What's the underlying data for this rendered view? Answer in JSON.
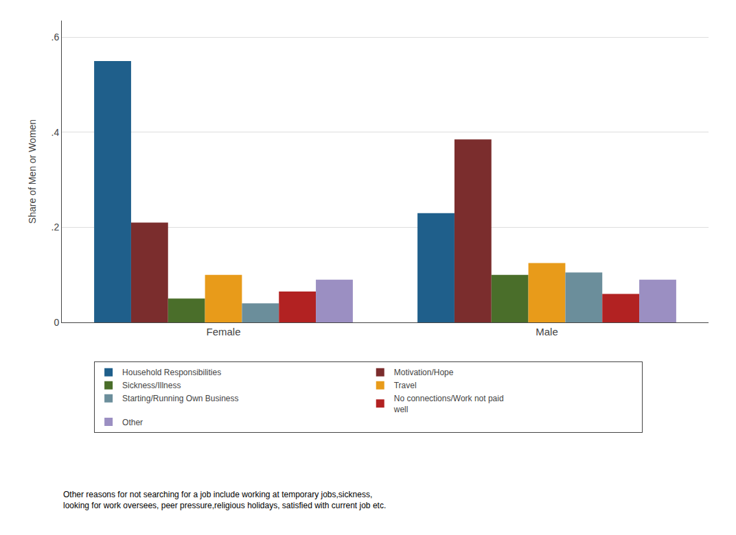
{
  "chart_data": {
    "type": "bar",
    "categories": [
      "Female",
      "Male"
    ],
    "series": [
      {
        "name": "Household Responsibilities",
        "color": "#1f5f8b",
        "values": [
          0.55,
          0.23
        ]
      },
      {
        "name": "Motivation/Hope",
        "color": "#7b2d2d",
        "values": [
          0.21,
          0.385
        ]
      },
      {
        "name": "Sickness/Illness",
        "color": "#4a6e2a",
        "values": [
          0.05,
          0.1
        ]
      },
      {
        "name": "Travel",
        "color": "#e89b1a",
        "values": [
          0.1,
          0.125
        ]
      },
      {
        "name": "Starting/Running Own Business",
        "color": "#6b8e9b",
        "values": [
          0.04,
          0.105
        ]
      },
      {
        "name": "No connections/Work not paid\nwell",
        "color": "#b22222",
        "values": [
          0.065,
          0.06
        ]
      },
      {
        "name": "Other",
        "color": "#9b8fc2",
        "values": [
          0.09,
          0.09
        ]
      }
    ],
    "ylabel": "Share of Men or Women",
    "ylim": [
      0,
      0.635
    ],
    "yticks": [
      0,
      {
        "value": 0.2,
        "label": ".2"
      },
      {
        "value": 0.4,
        "label": ".4"
      },
      {
        "value": 0.6,
        "label": ".6"
      }
    ],
    "grid": true,
    "legend": "bottom",
    "annotations": [
      "Other reasons for not searching for a job include working at temporary jobs,sickness,\nlooking for work oversees, peer pressure,religious holidays, satisfied with current job etc."
    ]
  }
}
